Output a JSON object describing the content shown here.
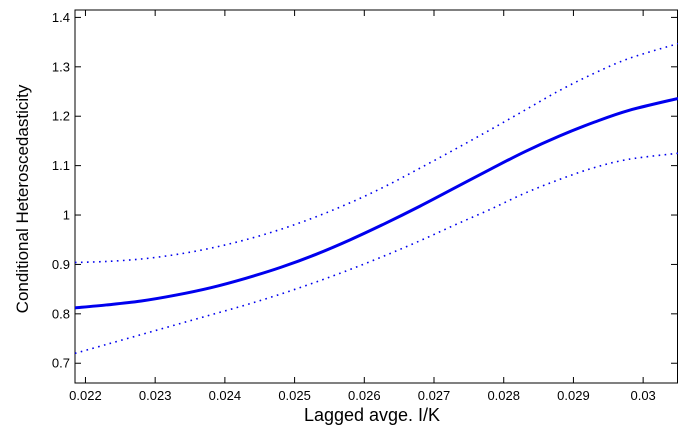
{
  "chart_data": {
    "type": "line",
    "title": "",
    "xlabel": "Lagged avge. I/K",
    "ylabel": "Conditional Heteroscedasticity",
    "xlim": [
      0.02185,
      0.0305
    ],
    "ylim": [
      0.66,
      1.415
    ],
    "x_ticks": [
      0.022,
      0.023,
      0.024,
      0.025,
      0.026,
      0.027,
      0.028,
      0.029,
      0.03
    ],
    "x_tick_labels": [
      "0.022",
      "0.023",
      "0.024",
      "0.025",
      "0.026",
      "0.027",
      "0.028",
      "0.029",
      "0.03"
    ],
    "y_ticks": [
      0.7,
      0.8,
      0.9,
      1.0,
      1.1,
      1.2,
      1.3,
      1.4
    ],
    "y_tick_labels": [
      "0.7",
      "0.8",
      "0.9",
      "1",
      "1.1",
      "1.2",
      "1.3",
      "1.4"
    ],
    "grid": false,
    "series": [
      {
        "style": "solid",
        "color": "#0000ee",
        "x": [
          0.02185,
          0.0223,
          0.0228,
          0.0233,
          0.0238,
          0.0243,
          0.0248,
          0.0253,
          0.0258,
          0.0263,
          0.0268,
          0.0273,
          0.0278,
          0.0283,
          0.0288,
          0.0293,
          0.0298,
          0.0305
        ],
        "y": [
          0.812,
          0.818,
          0.826,
          0.838,
          0.853,
          0.872,
          0.894,
          0.92,
          0.95,
          0.983,
          1.018,
          1.055,
          1.092,
          1.128,
          1.16,
          1.188,
          1.212,
          1.236
        ]
      },
      {
        "style": "dotted",
        "color": "#0000ee",
        "x": [
          0.02185,
          0.0223,
          0.0228,
          0.0233,
          0.0238,
          0.0243,
          0.0248,
          0.0253,
          0.0258,
          0.0263,
          0.0268,
          0.0273,
          0.0278,
          0.0283,
          0.0288,
          0.0293,
          0.0298,
          0.0305
        ],
        "y": [
          0.904,
          0.906,
          0.911,
          0.92,
          0.933,
          0.95,
          0.971,
          0.996,
          1.025,
          1.058,
          1.095,
          1.133,
          1.172,
          1.212,
          1.252,
          1.287,
          1.317,
          1.347
        ]
      },
      {
        "style": "dotted",
        "color": "#0000ee",
        "x": [
          0.02185,
          0.0223,
          0.0228,
          0.0233,
          0.0238,
          0.0243,
          0.0248,
          0.0253,
          0.0258,
          0.0263,
          0.0268,
          0.0273,
          0.0278,
          0.0283,
          0.0288,
          0.0293,
          0.0298,
          0.0305
        ],
        "y": [
          0.72,
          0.738,
          0.758,
          0.778,
          0.798,
          0.818,
          0.84,
          0.864,
          0.89,
          0.918,
          0.948,
          0.98,
          1.011,
          1.044,
          1.072,
          1.096,
          1.113,
          1.125
        ]
      }
    ]
  }
}
